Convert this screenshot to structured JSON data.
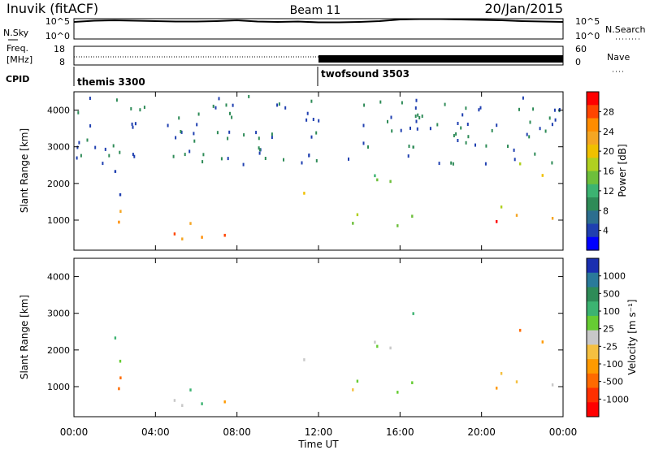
{
  "header": {
    "station": "Inuvik (fitACF)",
    "beam": "Beam 11",
    "date": "20/Jan/2015"
  },
  "noise_panel": {
    "left_label": "N.Sky",
    "right_label": "N.Search",
    "left_ticks": [
      "10^5",
      "10^0"
    ],
    "right_ticks": [
      "10^5",
      "10^0"
    ]
  },
  "freq_panel": {
    "left_label_1": "Freq.",
    "left_label_2": "[MHz]",
    "right_label": "Nave",
    "left_ticks": [
      "18",
      "8"
    ],
    "right_ticks": [
      "60",
      "0"
    ]
  },
  "cpid": {
    "label": "CPID",
    "segments": [
      {
        "name": "themis 3300",
        "start_h": 0.0
      },
      {
        "name": "twofsound 3503",
        "start_h": 12.0
      }
    ]
  },
  "x_axis": {
    "label": "Time UT",
    "ticks": [
      "00:00",
      "04:00",
      "08:00",
      "12:00",
      "16:00",
      "20:00",
      "00:00"
    ]
  },
  "power_panel": {
    "ylabel": "Slant Range [km]",
    "yticks": [
      "4000",
      "3000",
      "2000",
      "1000"
    ],
    "colorbar_label": "Power [dB]",
    "colorbar_ticks": [
      "28",
      "24",
      "20",
      "16",
      "12",
      "8",
      "4"
    ],
    "colors": [
      "#ff0000",
      "#ff4500",
      "#ff8c00",
      "#f5a623",
      "#f0c000",
      "#b0d020",
      "#6dbf3b",
      "#3cb371",
      "#2e8b57",
      "#2c6e8f",
      "#1f3fb0",
      "#0000ff"
    ]
  },
  "velocity_panel": {
    "ylabel": "Slant Range [km]",
    "yticks": [
      "4000",
      "3000",
      "2000",
      "1000"
    ],
    "colorbar_label": "Velocity [m s⁻¹]",
    "colorbar_ticks": [
      "1000",
      "500",
      "100",
      "25",
      "-25",
      "-100",
      "-500",
      "-1000"
    ],
    "colors": [
      "#1a2fb0",
      "#2a7a9a",
      "#2e8b57",
      "#3cb371",
      "#66cc33",
      "#c8c8c8",
      "#f5c040",
      "#ff9a00",
      "#ff6a00",
      "#ff3000",
      "#ff0000"
    ]
  },
  "chart_data": {
    "type": "heatmap",
    "title": "Inuvik (fitACF)  Beam 11  20/Jan/2015",
    "xlabel": "Time UT",
    "ylabel": "Slant Range [km]",
    "x_range_hours": [
      0,
      24
    ],
    "y_range_km": [
      180,
      4500
    ],
    "grid": false,
    "power_scale_db": [
      0,
      30
    ],
    "velocity_scale_ms": [
      -1000,
      1000
    ],
    "scatter_regions": [
      {
        "t0": 0.0,
        "t1": 3.3,
        "r0": 700,
        "r1": 1500,
        "power_db": 26,
        "velocity_ms": -300
      },
      {
        "t0": 0.0,
        "t1": 2.8,
        "r0": 1500,
        "r1": 2500,
        "power_db": 10,
        "velocity_ms": 150
      },
      {
        "t0": 4.0,
        "t1": 12.0,
        "r0": 200,
        "r1": 1100,
        "power_db": 25,
        "velocity_ms": 20
      },
      {
        "t0": 9.5,
        "t1": 11.3,
        "r0": 1500,
        "r1": 2000,
        "power_db": 18,
        "velocity_ms": 80
      },
      {
        "t0": 12.0,
        "t1": 18.5,
        "r0": 700,
        "r1": 2300,
        "power_db": 20,
        "velocity_ms": 100
      },
      {
        "t0": 15.0,
        "t1": 17.0,
        "r0": 2800,
        "r1": 3200,
        "power_db": 8,
        "velocity_ms": 200
      },
      {
        "t0": 18.0,
        "t1": 24.0,
        "r0": 500,
        "r1": 1400,
        "power_db": 27,
        "velocity_ms": -40
      },
      {
        "t0": 21.0,
        "t1": 24.0,
        "r0": 1900,
        "r1": 2700,
        "power_db": 20,
        "velocity_ms": -120
      }
    ],
    "noise_sky_log10": [
      4.2,
      4.5,
      4.6,
      4.5,
      4.4,
      4.3,
      4.3,
      4.4,
      4.6,
      4.3,
      4.2,
      4.3,
      4.1,
      4.1,
      4.2,
      4.4,
      4.8,
      4.9,
      4.9,
      4.8,
      4.7,
      4.6,
      4.4,
      4.3,
      4.2
    ],
    "nave_cpid": [
      {
        "t0": 0.0,
        "t1": 12.0,
        "nave": 16
      },
      {
        "t0": 12.0,
        "t1": 24.0,
        "nave": 33
      }
    ],
    "freq_mhz": [
      {
        "t0": 0.0,
        "t1": 24.0,
        "freq": 10.4
      }
    ]
  }
}
